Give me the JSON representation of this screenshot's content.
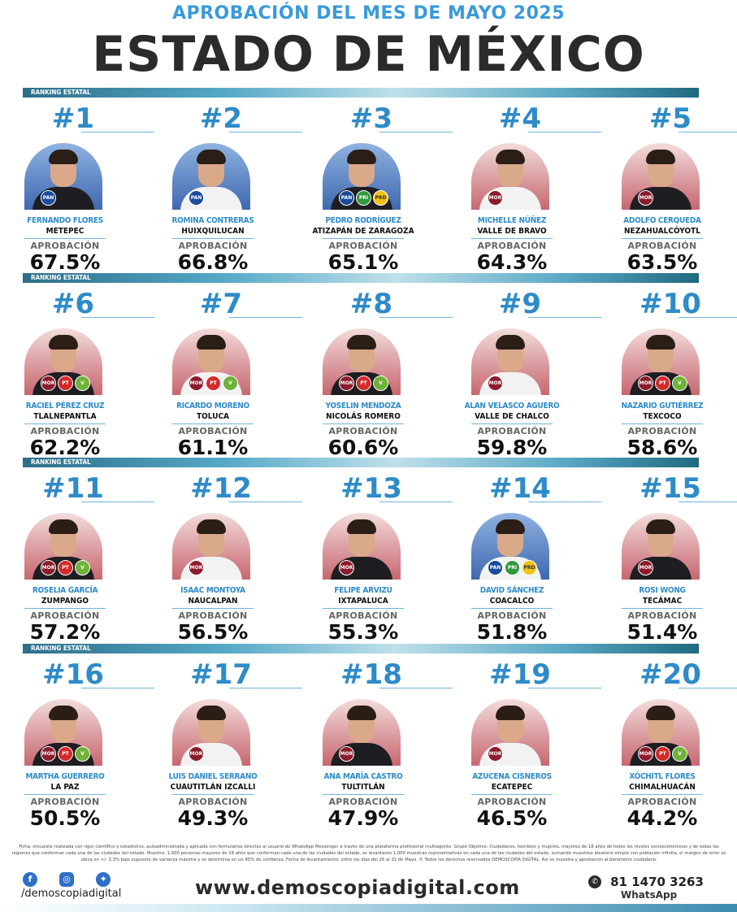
{
  "header": {
    "subtitle": "APROBACIÓN DEL MES DE MAYO 2025",
    "title": "ESTADO DE MÉXICO"
  },
  "section_label": "RANKING ESTATAL",
  "approval_label": "APROBACIÓN",
  "colors": {
    "accent": "#2e8bc8",
    "title": "#2b2b2b",
    "subtitle": "#3a9ad9"
  },
  "rows": [
    {
      "entries": [
        {
          "rank": "#1",
          "name": "FERNANDO FLORES",
          "city": "METEPEC",
          "value": "67.5%",
          "photo": "blue",
          "parties": [
            "PAN"
          ]
        },
        {
          "rank": "#2",
          "name": "ROMINA CONTRERAS",
          "city": "HUIXQUILUCAN",
          "value": "66.8%",
          "photo": "blue",
          "parties": [
            "PAN"
          ]
        },
        {
          "rank": "#3",
          "name": "PEDRO RODRÍGUEZ",
          "city": "ATIZAPÁN DE ZARAGOZA",
          "value": "65.1%",
          "photo": "blue",
          "parties": [
            "PAN",
            "PRI",
            "PRD"
          ]
        },
        {
          "rank": "#4",
          "name": "MICHELLE NÚÑEZ",
          "city": "VALLE DE BRAVO",
          "value": "64.3%",
          "photo": "red",
          "parties": [
            "MORENA"
          ]
        },
        {
          "rank": "#5",
          "name": "ADOLFO CERQUEDA",
          "city": "NEZAHUALCÓYOTL",
          "value": "63.5%",
          "photo": "red",
          "parties": [
            "MORENA"
          ]
        }
      ]
    },
    {
      "entries": [
        {
          "rank": "#6",
          "name": "RACIEL PÉREZ CRUZ",
          "city": "TLALNEPANTLA",
          "value": "62.2%",
          "photo": "red",
          "parties": [
            "MORENA",
            "PT",
            "PV"
          ]
        },
        {
          "rank": "#7",
          "name": "RICARDO MORENO",
          "city": "TOLUCA",
          "value": "61.1%",
          "photo": "red",
          "parties": [
            "MORENA",
            "PT",
            "PV"
          ]
        },
        {
          "rank": "#8",
          "name": "YOSELIN MENDOZA",
          "city": "NICOLÁS ROMERO",
          "value": "60.6%",
          "photo": "red",
          "parties": [
            "MORENA",
            "PT",
            "PV"
          ]
        },
        {
          "rank": "#9",
          "name": "ALAN VELASCO AGUERO",
          "city": "VALLE DE CHALCO",
          "value": "59.8%",
          "photo": "red",
          "parties": [
            "MORENA"
          ]
        },
        {
          "rank": "#10",
          "name": "NAZARIO GUTIÉRREZ",
          "city": "TEXCOCO",
          "value": "58.6%",
          "photo": "red",
          "parties": [
            "MORENA",
            "PT",
            "PV"
          ]
        }
      ]
    },
    {
      "entries": [
        {
          "rank": "#11",
          "name": "ROSELIA GARCÍA",
          "city": "ZUMPANGO",
          "value": "57.2%",
          "photo": "red",
          "parties": [
            "MORENA",
            "PT",
            "PV"
          ]
        },
        {
          "rank": "#12",
          "name": "ISAAC MONTOYA",
          "city": "NAUCALPAN",
          "value": "56.5%",
          "photo": "red",
          "parties": [
            "MORENA"
          ]
        },
        {
          "rank": "#13",
          "name": "FELIPE ARVIZU",
          "city": "IXTAPALUCA",
          "value": "55.3%",
          "photo": "red",
          "parties": [
            "MORENA"
          ]
        },
        {
          "rank": "#14",
          "name": "DAVID SÁNCHEZ",
          "city": "COACALCO",
          "value": "51.8%",
          "photo": "blue",
          "parties": [
            "PAN",
            "PRI",
            "PRD"
          ]
        },
        {
          "rank": "#15",
          "name": "ROSI WONG",
          "city": "TECÁMAC",
          "value": "51.4%",
          "photo": "red",
          "parties": [
            "MORENA"
          ]
        }
      ]
    },
    {
      "entries": [
        {
          "rank": "#16",
          "name": "MARTHA GUERRERO",
          "city": "LA PAZ",
          "value": "50.5%",
          "photo": "red",
          "parties": [
            "MORENA",
            "PT",
            "PV"
          ]
        },
        {
          "rank": "#17",
          "name": "LUIS DANIEL SERRANO",
          "city": "CUAUTITLÁN IZCALLI",
          "value": "49.3%",
          "photo": "red",
          "parties": [
            "MORENA"
          ]
        },
        {
          "rank": "#18",
          "name": "ANA MARÍA CASTRO",
          "city": "TULTITLÁN",
          "value": "47.9%",
          "photo": "red",
          "parties": [
            "MORENA"
          ]
        },
        {
          "rank": "#19",
          "name": "AZUCENA CISNEROS",
          "city": "ECATEPEC",
          "value": "46.5%",
          "photo": "red",
          "parties": [
            "MORENA"
          ]
        },
        {
          "rank": "#20",
          "name": "XÓCHITL FLORES",
          "city": "CHIMALHUACÁN",
          "value": "44.2%",
          "photo": "red",
          "parties": [
            "MORENA",
            "PT",
            "PV"
          ]
        }
      ]
    }
  ],
  "footnote": "Ficha: encuesta realizada con rigor científico y estadístico, autoadministrada y aplicada con formularios directos al usuario de WhatsApp Messenger a través de una plataforma profesional multiagente. Grupo Objetivo: Ciudadanos, hombres y mujeres, mayores de 18 años de todos los niveles socioeconómicos y de todas las regiones que conforman cada una de las ciudades del estado. Muestra: 1,000 personas mayores de 18 años que conforman cada una de las ciudades del estado, se levantaron 1,000 muestras representativas en cada una de las ciudades del estado, sumando muestreo aleatorio simple con población infinita, el margen de error se ubica en +/- 3.3% bajo supuesto de varianza máxima y se determina en un 95% de confianza. Fecha de levantamiento: entre los días del 26 al 31 de Mayo. © Todos los derechos reservados DEMOSCOPIA DIGITAL. Así se muestra y aprobación al barómetro ciudadano.",
  "footer": {
    "handle": "/demoscopiadigital",
    "website": "www.demoscopiadigital.com",
    "phone": "81 1470 3263",
    "whatsapp": "WhatsApp",
    "social_icons": [
      "facebook-icon",
      "instagram-icon",
      "twitter-icon"
    ]
  }
}
